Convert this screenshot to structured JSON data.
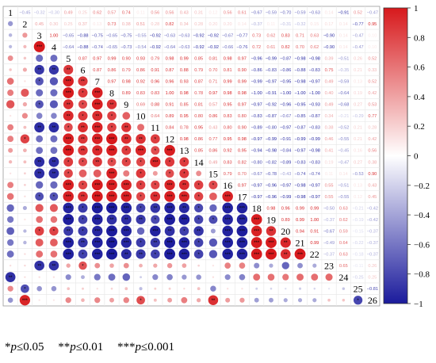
{
  "chart_data": {
    "type": "heatmap",
    "variables": [
      "1",
      "2",
      "3",
      "4",
      "5",
      "6",
      "7",
      "8",
      "9",
      "10",
      "11",
      "12",
      "13",
      "14",
      "15",
      "16",
      "17",
      "18",
      "19",
      "20",
      "21",
      "22",
      "23",
      "24",
      "25",
      "26"
    ],
    "upper_triangle": "coefficients",
    "lower_triangle": "circles with significance stars",
    "colorbar": {
      "ticks": [
        1,
        0.8,
        0.6,
        0.4,
        0.2,
        0,
        -0.2,
        -0.4,
        -0.6,
        -0.8,
        -1
      ],
      "min": -1,
      "max": 1,
      "colors": {
        "positive": "#d7191c",
        "zero": "#ffffff",
        "negative": "#1b1b9c"
      }
    },
    "row1": [
      null,
      -0.45,
      -0.32,
      -0.3,
      0.49,
      0.25,
      0.62,
      0.57,
      0.74,
      0.11,
      0.56,
      0.56,
      0.43,
      0.31,
      0.12,
      0.56,
      0.61,
      -0.67,
      -0.59,
      -0.7,
      -0.59,
      -0.63,
      0.14,
      -0.91,
      0.52,
      -0.47
    ],
    "row2": [
      null,
      null,
      0.45,
      0.3,
      0.25,
      0.37,
      0.13,
      0.73,
      0.38,
      0.51,
      0.28,
      0.82,
      0.34,
      0.28,
      0.2,
      0.2,
      0.14,
      -0.37,
      0.11,
      -0.31,
      -0.32,
      0.15,
      0.17,
      0.14,
      -0.77,
      0.95
    ],
    "row3": [
      null,
      null,
      null,
      1.0,
      -0.65,
      -0.88,
      -0.75,
      -0.65,
      -0.75,
      -0.55,
      -0.92,
      -0.63,
      -0.63,
      -0.92,
      -0.92,
      -0.67,
      -0.77,
      0.73,
      0.62,
      0.83,
      0.71,
      0.63,
      -0.9,
      0.14,
      -0.47,
      0.1
    ],
    "row4": [
      null,
      null,
      null,
      null,
      -0.64,
      -0.88,
      -0.74,
      -0.65,
      -0.73,
      -0.54,
      -0.92,
      -0.64,
      -0.63,
      -0.92,
      -0.92,
      -0.66,
      -0.76,
      0.72,
      0.61,
      0.82,
      0.7,
      0.62,
      -0.9,
      0.14,
      -0.47,
      0.1
    ],
    "row5": [
      null,
      null,
      null,
      null,
      null,
      0.87,
      0.97,
      0.99,
      0.9,
      0.93,
      0.79,
      0.98,
      0.99,
      0.85,
      0.81,
      0.98,
      0.97,
      -0.96,
      -0.99,
      -0.87,
      -0.98,
      -0.98,
      0.39,
      -0.51,
      0.26,
      0.52
    ],
    "row6": [
      null,
      null,
      null,
      null,
      null,
      null,
      0.87,
      0.86,
      0.79,
      0.86,
      0.91,
      0.87,
      0.88,
      0.79,
      0.7,
      0.81,
      0.9,
      -0.86,
      -0.83,
      -0.86,
      -0.88,
      -0.83,
      0.75,
      -0.35,
      0.21,
      0.33
    ],
    "row7": [
      null,
      null,
      null,
      null,
      null,
      null,
      null,
      0.97,
      0.98,
      0.92,
      0.96,
      0.96,
      0.93,
      0.87,
      0.71,
      0.99,
      0.99,
      -0.99,
      -0.97,
      -0.95,
      -0.98,
      -0.97,
      0.49,
      -0.59,
      0.13,
      0.52
    ],
    "row8": [
      null,
      null,
      null,
      null,
      null,
      null,
      null,
      null,
      0.89,
      0.83,
      0.83,
      1.0,
      0.98,
      0.78,
      0.97,
      0.98,
      0.98,
      -1.0,
      -0.91,
      -1.0,
      -1.0,
      -1.0,
      0.4,
      -0.64,
      0.19,
      0.42
    ],
    "row9": [
      null,
      null,
      null,
      null,
      null,
      null,
      null,
      null,
      null,
      0.69,
      0.88,
      0.91,
      0.85,
      0.81,
      0.57,
      0.95,
      0.97,
      -0.97,
      -0.92,
      -0.96,
      -0.95,
      -0.93,
      0.49,
      -0.68,
      0.27,
      0.53
    ],
    "row10": [
      null,
      null,
      null,
      null,
      null,
      null,
      null,
      null,
      null,
      null,
      0.64,
      0.89,
      0.95,
      0.8,
      0.86,
      0.83,
      0.8,
      -0.83,
      -0.87,
      -0.67,
      -0.85,
      -0.87,
      0.34,
      -0.21,
      -0.29,
      0.77
    ],
    "row11": [
      null,
      null,
      null,
      null,
      null,
      null,
      null,
      null,
      null,
      null,
      null,
      0.84,
      0.78,
      0.95,
      0.43,
      0.8,
      0.9,
      -0.89,
      -0.8,
      -0.97,
      -0.87,
      -0.83,
      0.38,
      -0.52,
      0.21,
      0.28
    ],
    "row12": [
      null,
      null,
      null,
      null,
      null,
      null,
      null,
      null,
      null,
      null,
      null,
      null,
      0.98,
      0.86,
      0.77,
      0.95,
      0.98,
      -0.97,
      -0.99,
      -0.91,
      -0.99,
      -0.99,
      0.46,
      -0.55,
      0.21,
      0.42
    ],
    "row13": [
      null,
      null,
      null,
      null,
      null,
      null,
      null,
      null,
      null,
      null,
      null,
      null,
      null,
      0.85,
      0.86,
      0.92,
      0.95,
      -0.94,
      -0.98,
      -0.84,
      -0.97,
      -0.98,
      0.41,
      -0.45,
      0.16,
      0.56
    ],
    "row14": [
      null,
      null,
      null,
      null,
      null,
      null,
      null,
      null,
      null,
      null,
      null,
      null,
      null,
      null,
      0.49,
      0.83,
      0.82,
      -0.8,
      -0.82,
      -0.89,
      -0.83,
      -0.83,
      0.19,
      -0.47,
      0.27,
      0.38
    ],
    "row15": [
      null,
      null,
      null,
      null,
      null,
      null,
      null,
      null,
      null,
      null,
      null,
      null,
      null,
      null,
      null,
      0.79,
      0.7,
      -0.67,
      -0.78,
      -0.43,
      -0.74,
      -0.74,
      0.11,
      0.14,
      -0.53,
      0.9
    ],
    "row16": [
      null,
      null,
      null,
      null,
      null,
      null,
      null,
      null,
      null,
      null,
      null,
      null,
      null,
      null,
      null,
      null,
      0.97,
      -0.97,
      -0.96,
      -0.97,
      -0.98,
      -0.97,
      0.55,
      -0.51,
      0.13,
      0.43
    ],
    "row17": [
      null,
      null,
      null,
      null,
      null,
      null,
      null,
      null,
      null,
      null,
      null,
      null,
      null,
      null,
      null,
      null,
      null,
      -0.97,
      -0.96,
      -0.99,
      -0.98,
      -0.97,
      0.55,
      -0.55,
      0.12,
      0.45
    ],
    "row18": [
      null,
      null,
      null,
      null,
      null,
      null,
      null,
      null,
      null,
      null,
      null,
      null,
      null,
      null,
      null,
      null,
      null,
      null,
      0.98,
      0.96,
      0.99,
      0.99,
      -0.5,
      0.63,
      -0.21,
      -0.42
    ],
    "row19": [
      null,
      null,
      null,
      null,
      null,
      null,
      null,
      null,
      null,
      null,
      null,
      null,
      null,
      null,
      null,
      null,
      null,
      null,
      null,
      0.89,
      0.99,
      1.0,
      -0.37,
      0.62,
      -0.19,
      -0.42
    ],
    "row20": [
      null,
      null,
      null,
      null,
      null,
      null,
      null,
      null,
      null,
      null,
      null,
      null,
      null,
      null,
      null,
      null,
      null,
      null,
      null,
      null,
      0.94,
      0.91,
      -0.67,
      0.59,
      -0.15,
      -0.37
    ],
    "row21": [
      null,
      null,
      null,
      null,
      null,
      null,
      null,
      null,
      null,
      null,
      null,
      null,
      null,
      null,
      null,
      null,
      null,
      null,
      null,
      null,
      null,
      0.99,
      -0.49,
      0.64,
      -0.22,
      -0.37
    ],
    "row22": [
      null,
      null,
      null,
      null,
      null,
      null,
      null,
      null,
      null,
      null,
      null,
      null,
      null,
      null,
      null,
      null,
      null,
      null,
      null,
      null,
      null,
      null,
      -0.37,
      0.63,
      -0.18,
      -0.37
    ],
    "row23": [
      null,
      null,
      null,
      null,
      null,
      null,
      null,
      null,
      null,
      null,
      null,
      null,
      null,
      null,
      null,
      null,
      null,
      null,
      null,
      null,
      null,
      null,
      null,
      0.65,
      -0.11,
      0.26
    ],
    "row24": [
      null,
      null,
      null,
      null,
      null,
      null,
      null,
      null,
      null,
      null,
      null,
      null,
      null,
      null,
      null,
      null,
      null,
      null,
      null,
      null,
      null,
      null,
      null,
      null,
      -0.25,
      0.25
    ],
    "row25": [
      null,
      null,
      null,
      null,
      null,
      null,
      null,
      null,
      null,
      null,
      null,
      null,
      null,
      null,
      null,
      null,
      null,
      null,
      null,
      null,
      null,
      null,
      null,
      null,
      null,
      -0.81
    ]
  },
  "footnote": {
    "p05": {
      "stars": "*",
      "p": "p",
      "rel": "≤0.05"
    },
    "p01": {
      "stars": "**",
      "p": "p",
      "rel": "≤0.01"
    },
    "p001": {
      "stars": "***",
      "p": "p",
      "rel": "≤0.001"
    }
  }
}
